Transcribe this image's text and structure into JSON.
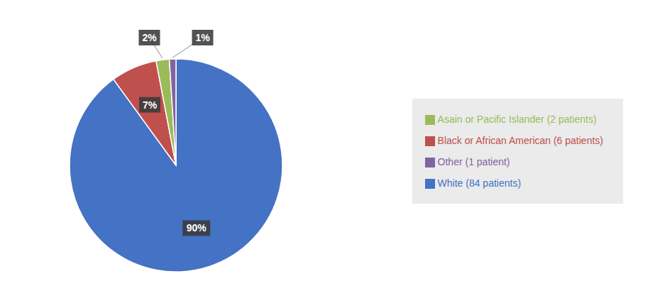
{
  "chart_data": {
    "type": "pie",
    "categories": [
      "White (84 patients)",
      "Black or African American (6 patients)",
      "Asain or Pacific Islander (2 patients)",
      "Other (1 patient)"
    ],
    "values": [
      90,
      7,
      2,
      1
    ],
    "value_labels": [
      "90%",
      "7%",
      "2%",
      "1%"
    ],
    "data_labels": true,
    "colors": [
      "#4472C4",
      "#C0504D",
      "#9BBB59",
      "#8064A2"
    ],
    "legend": "right"
  }
}
